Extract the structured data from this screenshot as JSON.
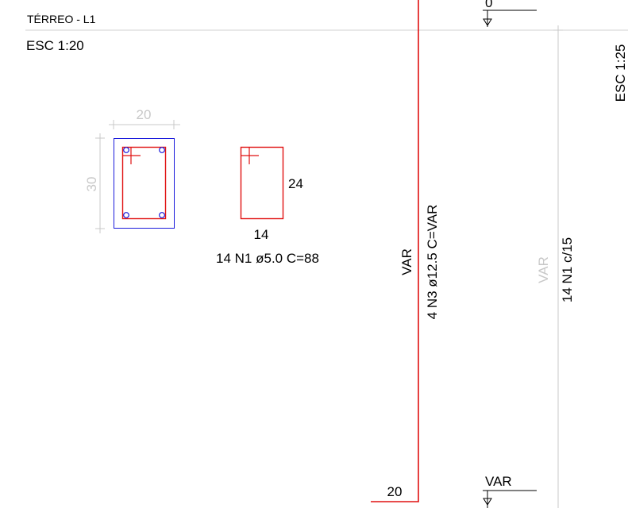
{
  "section": {
    "title": "TÉRREO - L1",
    "scale": "ESC 1:20",
    "dim_width": "20",
    "dim_height": "30"
  },
  "stirrup": {
    "height": "24",
    "width": "14",
    "spec": "14 N1 ø5.0  C=88"
  },
  "elevation": {
    "scale": "ESC 1:25",
    "level_top": "0",
    "level_bottom": "VAR",
    "bar_length": "VAR",
    "bar_spec": "4 N3 ø12.5  C=VAR",
    "hook_length": "20",
    "stirrup_zone": "VAR",
    "stirrup_spec": "14 N1 c/15"
  },
  "colors": {
    "concrete_outline": "#1a1adc",
    "rebar": "#e01010",
    "dimension": "#c8c8c8",
    "text": "#000000"
  }
}
